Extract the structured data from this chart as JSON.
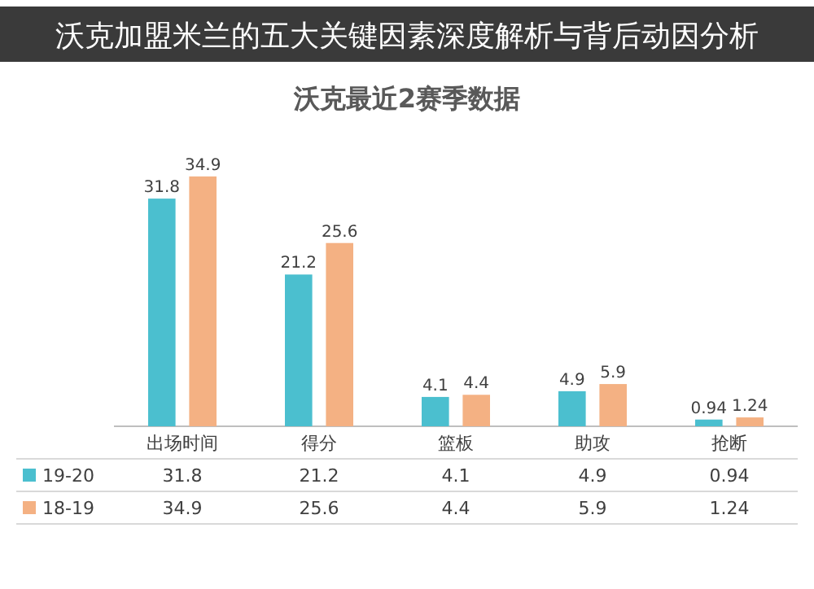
{
  "chart_data": {
    "type": "bar",
    "title": "沃克最近2赛季数据",
    "subtitle": "沃克加盟米兰的五大关键因素深度解析与背后动因分析",
    "categories": [
      "出场时间",
      "得分",
      "篮板",
      "助攻",
      "抢断"
    ],
    "series": [
      {
        "name": "19-20",
        "color": "#4bbfcf",
        "values": [
          31.8,
          21.2,
          4.1,
          4.9,
          0.94
        ],
        "value_labels": [
          "31.8",
          "21.2",
          "4.1",
          "4.9",
          "0.94"
        ]
      },
      {
        "name": "18-19",
        "color": "#f4b183",
        "values": [
          34.9,
          25.6,
          4.4,
          5.9,
          1.24
        ],
        "value_labels": [
          "34.9",
          "25.6",
          "4.4",
          "5.9",
          "1.24"
        ]
      }
    ],
    "annotations": [
      "31.8",
      "21.2",
      "4.1",
      "4.9",
      "0.94",
      "34.9",
      "25.6",
      "4.4",
      "5.9",
      "1.24"
    ],
    "legend": "bottom"
  }
}
